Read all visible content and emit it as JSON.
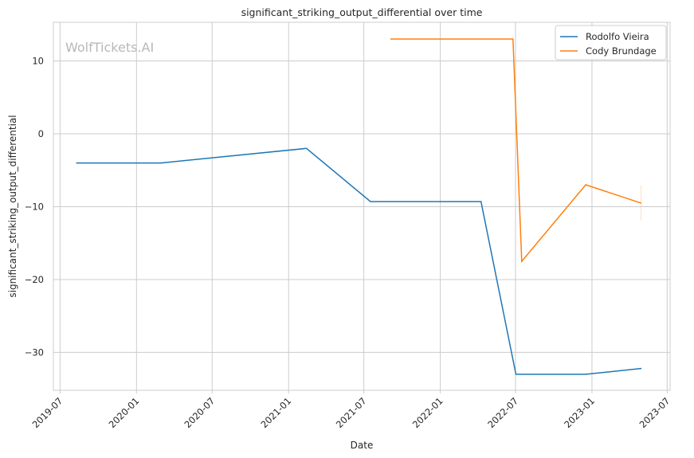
{
  "chart_data": {
    "type": "line",
    "title": "significant_striking_output_differential over time",
    "xlabel": "Date",
    "ylabel": "significant_striking_output_differential",
    "watermark": "WolfTickets.AI",
    "xlim": [
      "2019-06-15",
      "2023-07-08"
    ],
    "ylim": [
      -35.2,
      15.3
    ],
    "x_ticks": [
      "2019-07",
      "2020-01",
      "2020-07",
      "2021-01",
      "2021-07",
      "2022-01",
      "2022-07",
      "2023-01",
      "2023-07"
    ],
    "y_ticks": [
      10,
      0,
      -10,
      -20,
      -30
    ],
    "grid": true,
    "legend_position": "top-right",
    "series": [
      {
        "name": "Rodolfo Vieira",
        "color": "#1f77b4",
        "points": [
          {
            "x": "2019-08-10",
            "y": -4.0
          },
          {
            "x": "2020-02-29",
            "y": -4.0
          },
          {
            "x": "2021-02-13",
            "y": -2.0
          },
          {
            "x": "2021-07-17",
            "y": -9.3
          },
          {
            "x": "2022-04-09",
            "y": -9.3
          },
          {
            "x": "2022-07-02",
            "y": -33.0
          },
          {
            "x": "2022-12-17",
            "y": -33.0
          },
          {
            "x": "2023-04-29",
            "y": -32.2
          }
        ]
      },
      {
        "name": "Cody Brundage",
        "color": "#ff7f0e",
        "points": [
          {
            "x": "2021-09-04",
            "y": 13.0
          },
          {
            "x": "2022-06-25",
            "y": 13.0
          },
          {
            "x": "2022-07-16",
            "y": -17.5
          },
          {
            "x": "2022-12-17",
            "y": -7.0
          },
          {
            "x": "2023-04-29",
            "y": -9.5
          }
        ]
      }
    ]
  }
}
